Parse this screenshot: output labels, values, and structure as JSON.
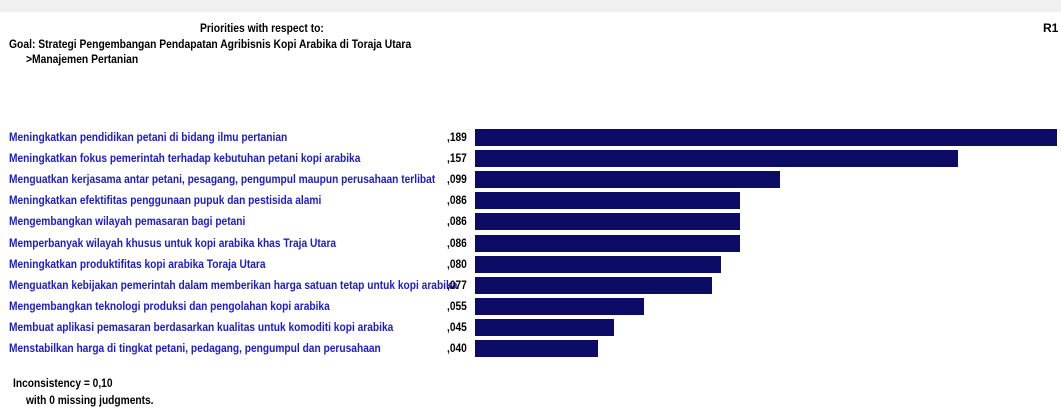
{
  "header": {
    "priorities_label": "Priorities with respect to:",
    "column_label": "R1",
    "goal": "Goal: Strategi Pengembangan Pendapatan Agribisnis Kopi Arabika di Toraja Utara",
    "sub_node": ">Manajemen Pertanian"
  },
  "colors": {
    "bar": "#0c0c66",
    "label_text": "#1c1ccc",
    "value_text": "#000000"
  },
  "chart_data": {
    "type": "bar",
    "orientation": "horizontal",
    "categories": [
      "Meningkatkan pendidikan petani di bidang ilmu pertanian",
      "Meningkatkan fokus pemerintah terhadap kebutuhan petani kopi arabika",
      "Menguatkan kerjasama antar petani, pesagang, pengumpul maupun perusahaan terlibat",
      "Meningkatkan efektifitas penggunaan pupuk dan pestisida alami",
      "Mengembangkan wilayah pemasaran bagi petani",
      "Memperbanyak wilayah khusus untuk kopi arabika khas Traja Utara",
      "Meningkatkan produktifitas kopi arabika Toraja Utara",
      "Menguatkan kebijakan pemerintah dalam memberikan harga satuan tetap untuk kopi arabika",
      "Mengembangkan teknologi produksi dan pengolahan kopi arabika",
      "Membuat aplikasi pemasaran berdasarkan kualitas untuk komoditi kopi arabika",
      "Menstabilkan harga di tingkat petani, pedagang, pengumpul dan perusahaan"
    ],
    "values": [
      0.189,
      0.157,
      0.099,
      0.086,
      0.086,
      0.086,
      0.08,
      0.077,
      0.055,
      0.045,
      0.04
    ],
    "value_labels": [
      ",189",
      ",157",
      ",099",
      ",086",
      ",086",
      ",086",
      ",080",
      ",077",
      ",055",
      ",045",
      ",040"
    ],
    "xlim": [
      0,
      0.189
    ]
  },
  "footer": {
    "inconsistency": "Inconsistency = 0,10",
    "missing": "with 0  missing judgments."
  }
}
